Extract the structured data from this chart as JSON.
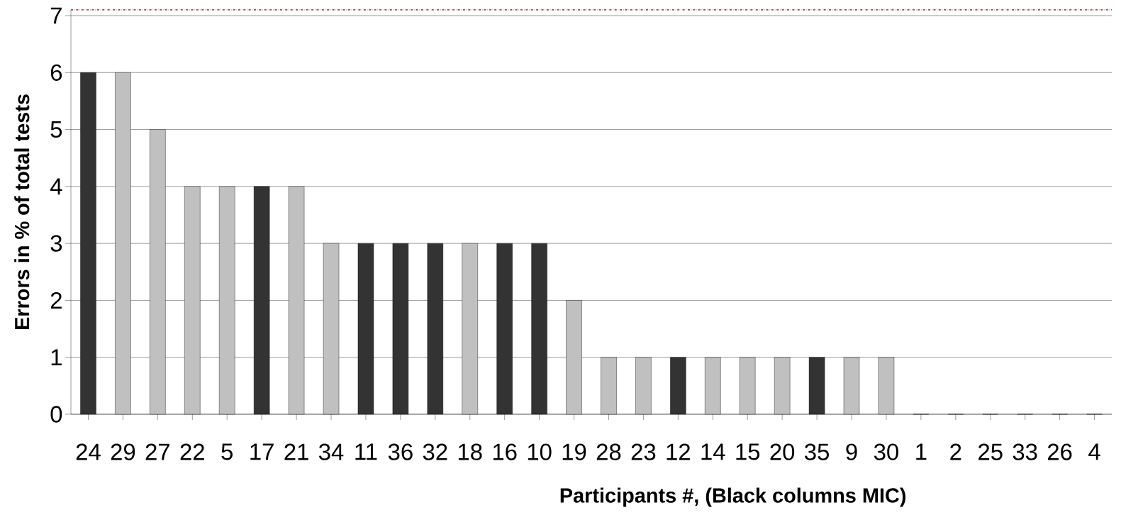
{
  "chart_data": {
    "type": "bar",
    "xlabel": "Participants #, (Black columns MIC)",
    "ylabel": "Errors in % of total tests",
    "categories": [
      "24",
      "29",
      "27",
      "22",
      "5",
      "17",
      "21",
      "34",
      "11",
      "36",
      "32",
      "18",
      "16",
      "10",
      "19",
      "28",
      "23",
      "12",
      "14",
      "15",
      "20",
      "35",
      "9",
      "30",
      "1",
      "2",
      "25",
      "33",
      "26",
      "4"
    ],
    "values": [
      6,
      6,
      5,
      4,
      4,
      4,
      4,
      3,
      3,
      3,
      3,
      3,
      3,
      3,
      2,
      1,
      1,
      1,
      1,
      1,
      1,
      1,
      1,
      1,
      0,
      0,
      0,
      0,
      0,
      0
    ],
    "colors": [
      "#333333",
      "#c0c0c0",
      "#c0c0c0",
      "#c0c0c0",
      "#c0c0c0",
      "#333333",
      "#c0c0c0",
      "#c0c0c0",
      "#333333",
      "#333333",
      "#333333",
      "#c0c0c0",
      "#333333",
      "#333333",
      "#c0c0c0",
      "#c0c0c0",
      "#c0c0c0",
      "#333333",
      "#c0c0c0",
      "#c0c0c0",
      "#c0c0c0",
      "#333333",
      "#c0c0c0",
      "#c0c0c0",
      "#c0c0c0",
      "#c0c0c0",
      "#c0c0c0",
      "#c0c0c0",
      "#c0c0c0",
      "#c0c0c0"
    ],
    "ylim": [
      0,
      7.1
    ],
    "yticks": [
      0,
      1,
      2,
      3,
      4,
      5,
      6,
      7
    ],
    "grid": "y",
    "ref_lines": [
      {
        "axis": "y",
        "value": 7.1,
        "color": "#990000",
        "line_style": "dashdot"
      }
    ]
  }
}
